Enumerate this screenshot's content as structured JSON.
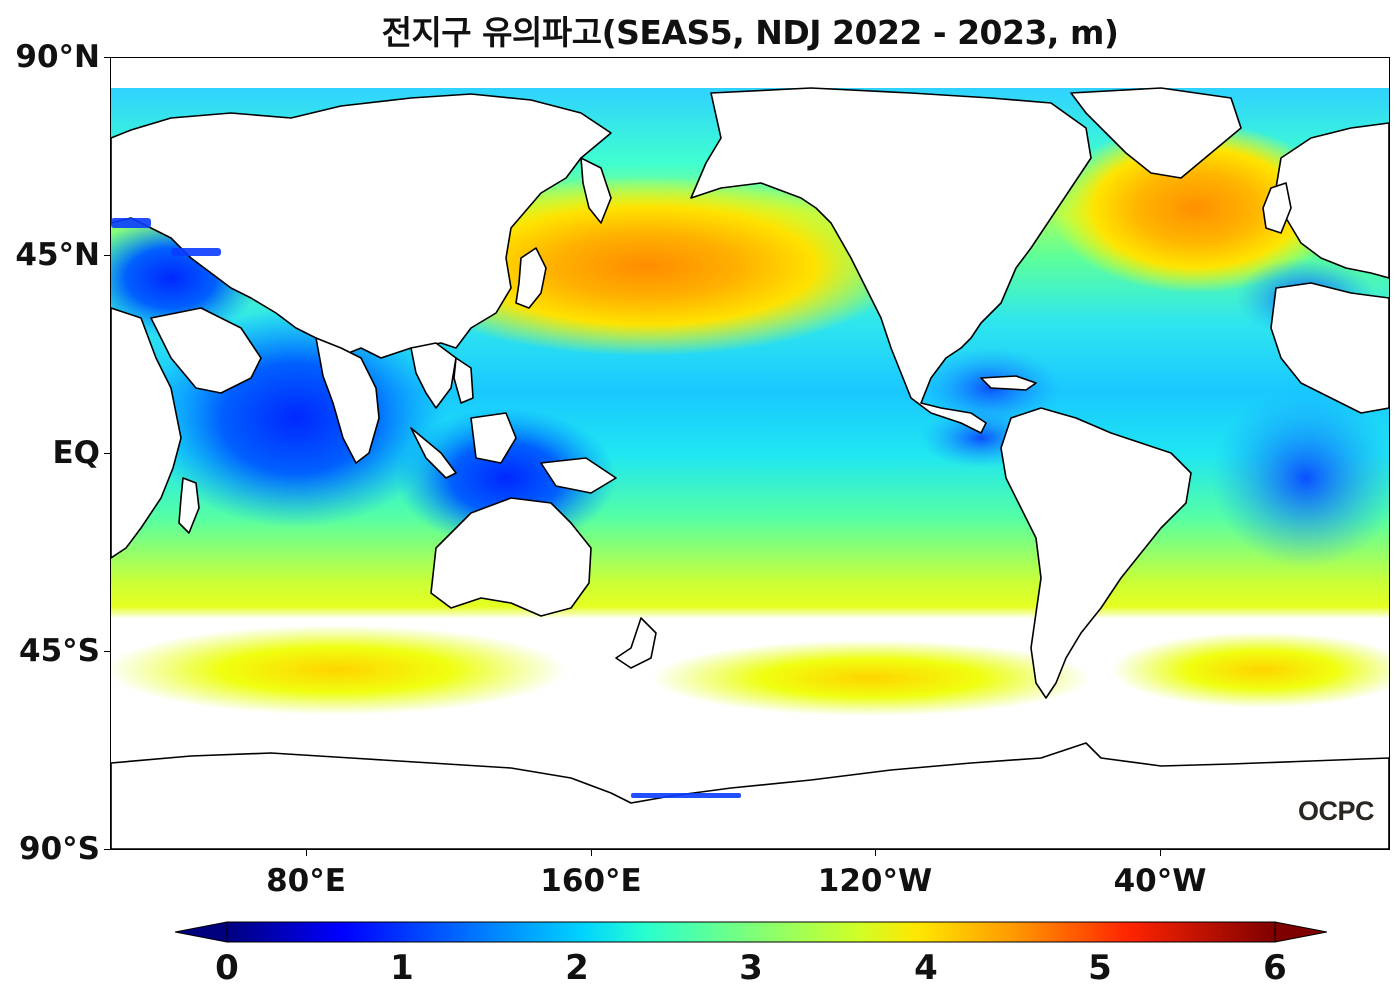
{
  "title": "전지구 유의파고(SEAS5, NDJ 2022 - 2023, m)",
  "lat_ticks": [
    "90°N",
    "45°N",
    "EQ",
    "45°S",
    "90°S"
  ],
  "lon_ticks": [
    "80°E",
    "160°E",
    "120°W",
    "40°W"
  ],
  "colorbar": {
    "min": 0,
    "max": 6,
    "extend": "both",
    "ticks": [
      "0",
      "1",
      "2",
      "3",
      "4",
      "5",
      "6"
    ],
    "colormap": "jet",
    "colors": [
      "#00007f",
      "#0000ff",
      "#007fff",
      "#00ffff",
      "#7fff7f",
      "#ffff00",
      "#ff7f00",
      "#ff0000",
      "#7f0000"
    ]
  },
  "logo": "OCPC",
  "colors": {
    "land": "#ffffff",
    "coastline": "#000000",
    "storm_track_max": "#ff8c00"
  }
}
